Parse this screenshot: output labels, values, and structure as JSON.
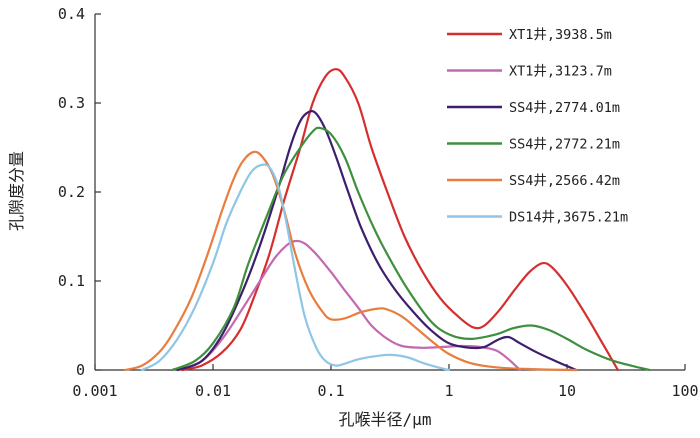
{
  "chart_data": {
    "type": "line",
    "xlabel": "孔喉半径/μm",
    "ylabel": "孔隙度分量",
    "x_scale": "log",
    "xlim": [
      0.001,
      100
    ],
    "ylim": [
      0,
      0.4
    ],
    "x_ticks": [
      0.001,
      0.01,
      0.1,
      1,
      10,
      100
    ],
    "x_tick_labels": [
      "0.001",
      "0.01",
      "0.1",
      "1",
      "10",
      "100"
    ],
    "y_ticks": [
      0,
      0.1,
      0.2,
      0.3,
      0.4
    ],
    "y_tick_labels": [
      "0",
      "0.1",
      "0.2",
      "0.3",
      "0.4"
    ],
    "grid": false,
    "legend_position": "top-right",
    "series": [
      {
        "name": "XT1井,3938.5m",
        "color": "#d62e2e",
        "points": [
          [
            0.0055,
            0
          ],
          [
            0.008,
            0.005
          ],
          [
            0.012,
            0.02
          ],
          [
            0.017,
            0.045
          ],
          [
            0.022,
            0.08
          ],
          [
            0.03,
            0.13
          ],
          [
            0.04,
            0.19
          ],
          [
            0.055,
            0.25
          ],
          [
            0.07,
            0.3
          ],
          [
            0.09,
            0.33
          ],
          [
            0.11,
            0.338
          ],
          [
            0.13,
            0.33
          ],
          [
            0.17,
            0.3
          ],
          [
            0.22,
            0.25
          ],
          [
            0.3,
            0.2
          ],
          [
            0.42,
            0.15
          ],
          [
            0.6,
            0.11
          ],
          [
            0.85,
            0.08
          ],
          [
            1.2,
            0.06
          ],
          [
            1.6,
            0.048
          ],
          [
            2,
            0.05
          ],
          [
            2.7,
            0.068
          ],
          [
            3.6,
            0.09
          ],
          [
            4.8,
            0.11
          ],
          [
            6.2,
            0.12
          ],
          [
            7.5,
            0.115
          ],
          [
            10,
            0.095
          ],
          [
            14,
            0.065
          ],
          [
            20,
            0.03
          ],
          [
            27,
            0
          ]
        ]
      },
      {
        "name": "XT1井,3123.7m",
        "color": "#c468b0",
        "points": [
          [
            0.005,
            0
          ],
          [
            0.008,
            0.01
          ],
          [
            0.012,
            0.035
          ],
          [
            0.018,
            0.07
          ],
          [
            0.025,
            0.1
          ],
          [
            0.033,
            0.125
          ],
          [
            0.042,
            0.14
          ],
          [
            0.05,
            0.145
          ],
          [
            0.06,
            0.142
          ],
          [
            0.075,
            0.13
          ],
          [
            0.1,
            0.11
          ],
          [
            0.13,
            0.09
          ],
          [
            0.17,
            0.07
          ],
          [
            0.22,
            0.05
          ],
          [
            0.3,
            0.035
          ],
          [
            0.4,
            0.027
          ],
          [
            0.6,
            0.025
          ],
          [
            0.9,
            0.026
          ],
          [
            1.3,
            0.027
          ],
          [
            1.8,
            0.026
          ],
          [
            2.5,
            0.022
          ],
          [
            3.2,
            0.012
          ],
          [
            4,
            0
          ]
        ]
      },
      {
        "name": "SS4井,2774.01m",
        "color": "#3d1e6e",
        "points": [
          [
            0.005,
            0
          ],
          [
            0.008,
            0.01
          ],
          [
            0.012,
            0.04
          ],
          [
            0.018,
            0.09
          ],
          [
            0.025,
            0.14
          ],
          [
            0.035,
            0.2
          ],
          [
            0.045,
            0.25
          ],
          [
            0.055,
            0.28
          ],
          [
            0.065,
            0.29
          ],
          [
            0.075,
            0.288
          ],
          [
            0.09,
            0.27
          ],
          [
            0.11,
            0.24
          ],
          [
            0.14,
            0.2
          ],
          [
            0.18,
            0.16
          ],
          [
            0.25,
            0.12
          ],
          [
            0.35,
            0.09
          ],
          [
            0.5,
            0.065
          ],
          [
            0.7,
            0.045
          ],
          [
            1,
            0.03
          ],
          [
            1.5,
            0.025
          ],
          [
            2,
            0.026
          ],
          [
            2.6,
            0.034
          ],
          [
            3.2,
            0.037
          ],
          [
            4,
            0.03
          ],
          [
            5.5,
            0.02
          ],
          [
            8,
            0.01
          ],
          [
            12,
            0
          ]
        ]
      },
      {
        "name": "SS4井,2772.21m",
        "color": "#3f8f3f",
        "points": [
          [
            0.0045,
            0
          ],
          [
            0.007,
            0.01
          ],
          [
            0.01,
            0.03
          ],
          [
            0.015,
            0.07
          ],
          [
            0.02,
            0.12
          ],
          [
            0.03,
            0.18
          ],
          [
            0.04,
            0.22
          ],
          [
            0.055,
            0.25
          ],
          [
            0.07,
            0.268
          ],
          [
            0.08,
            0.272
          ],
          [
            0.1,
            0.265
          ],
          [
            0.13,
            0.24
          ],
          [
            0.17,
            0.2
          ],
          [
            0.23,
            0.16
          ],
          [
            0.3,
            0.13
          ],
          [
            0.45,
            0.09
          ],
          [
            0.7,
            0.055
          ],
          [
            1,
            0.04
          ],
          [
            1.5,
            0.035
          ],
          [
            2.5,
            0.04
          ],
          [
            3.5,
            0.047
          ],
          [
            5,
            0.05
          ],
          [
            7,
            0.045
          ],
          [
            10,
            0.035
          ],
          [
            15,
            0.022
          ],
          [
            25,
            0.01
          ],
          [
            50,
            0
          ]
        ]
      },
      {
        "name": "SS4井,2566.42m",
        "color": "#e87d3e",
        "points": [
          [
            0.0018,
            0
          ],
          [
            0.0025,
            0.005
          ],
          [
            0.0035,
            0.02
          ],
          [
            0.0045,
            0.04
          ],
          [
            0.0065,
            0.08
          ],
          [
            0.009,
            0.13
          ],
          [
            0.012,
            0.18
          ],
          [
            0.015,
            0.215
          ],
          [
            0.018,
            0.235
          ],
          [
            0.022,
            0.245
          ],
          [
            0.026,
            0.24
          ],
          [
            0.032,
            0.22
          ],
          [
            0.04,
            0.18
          ],
          [
            0.05,
            0.13
          ],
          [
            0.065,
            0.09
          ],
          [
            0.085,
            0.065
          ],
          [
            0.1,
            0.057
          ],
          [
            0.13,
            0.058
          ],
          [
            0.18,
            0.065
          ],
          [
            0.25,
            0.069
          ],
          [
            0.3,
            0.068
          ],
          [
            0.4,
            0.06
          ],
          [
            0.55,
            0.045
          ],
          [
            0.75,
            0.03
          ],
          [
            1,
            0.018
          ],
          [
            1.5,
            0.008
          ],
          [
            2.5,
            0.003
          ],
          [
            5,
            0.001
          ],
          [
            12,
            0
          ]
        ]
      },
      {
        "name": "DS14井,3675.21m",
        "color": "#8fc6e6",
        "points": [
          [
            0.0025,
            0
          ],
          [
            0.0035,
            0.01
          ],
          [
            0.005,
            0.035
          ],
          [
            0.007,
            0.07
          ],
          [
            0.01,
            0.12
          ],
          [
            0.013,
            0.165
          ],
          [
            0.017,
            0.2
          ],
          [
            0.021,
            0.222
          ],
          [
            0.025,
            0.23
          ],
          [
            0.03,
            0.228
          ],
          [
            0.036,
            0.205
          ],
          [
            0.042,
            0.165
          ],
          [
            0.05,
            0.11
          ],
          [
            0.06,
            0.06
          ],
          [
            0.075,
            0.025
          ],
          [
            0.09,
            0.01
          ],
          [
            0.11,
            0.005
          ],
          [
            0.13,
            0.007
          ],
          [
            0.17,
            0.012
          ],
          [
            0.25,
            0.016
          ],
          [
            0.33,
            0.017
          ],
          [
            0.45,
            0.014
          ],
          [
            0.6,
            0.008
          ],
          [
            0.8,
            0.003
          ],
          [
            1,
            0
          ]
        ]
      }
    ]
  }
}
